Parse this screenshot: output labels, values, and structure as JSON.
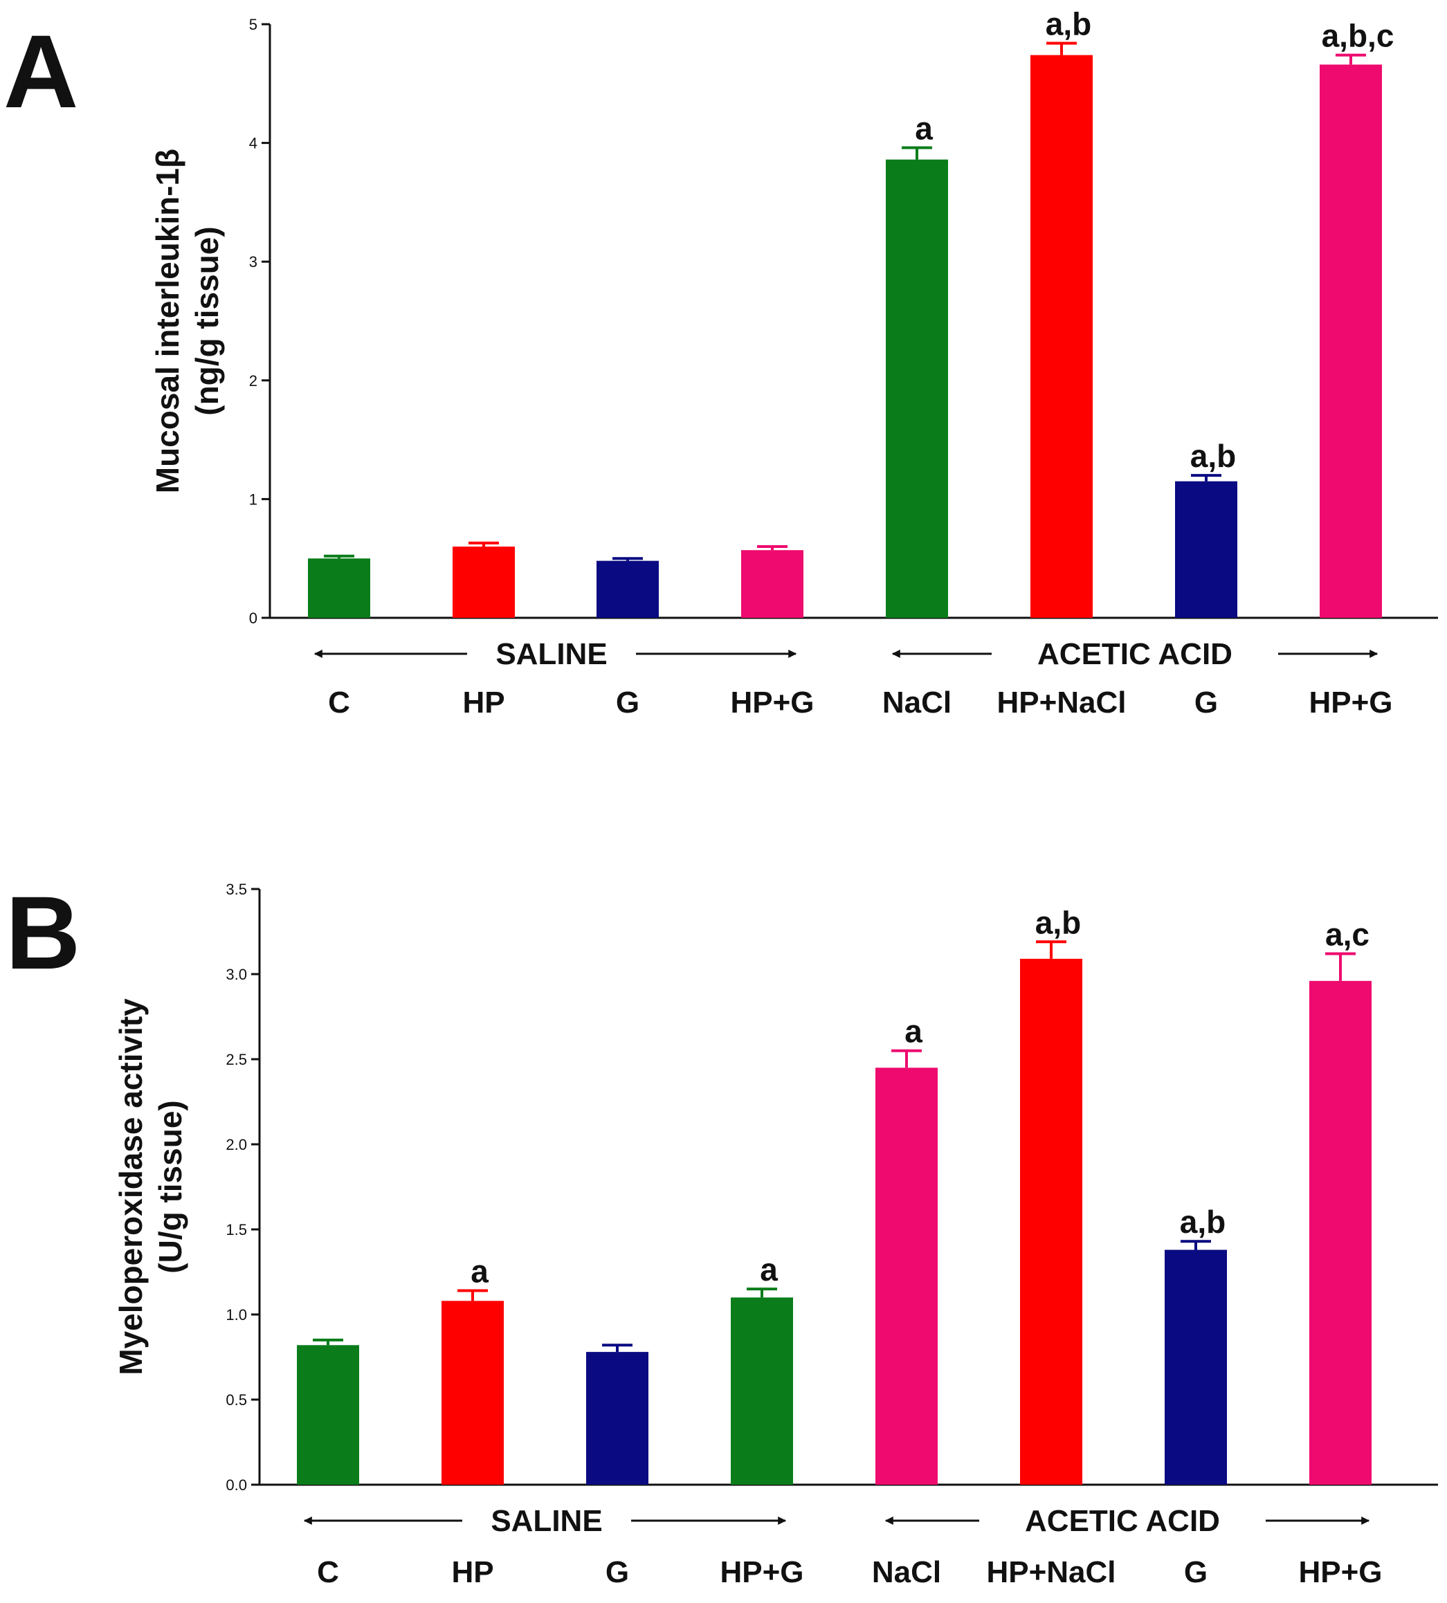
{
  "chart_data": [
    {
      "panel_label": "A",
      "type": "bar",
      "ylabel_line1": "Mucosal interleukin-1β",
      "ylabel_line2": "(ng/g tissue)",
      "ylim": [
        0,
        5
      ],
      "yticks": [
        "0",
        "1",
        "2",
        "3",
        "4",
        "5"
      ],
      "groups": [
        {
          "label": "SALINE",
          "categories": [
            "C",
            "HP",
            "G",
            "HP+G"
          ]
        },
        {
          "label": "ACETIC ACID",
          "categories": [
            "NaCl",
            "HP+NaCl",
            "G",
            "HP+G"
          ]
        }
      ],
      "categories": [
        "C",
        "HP",
        "G",
        "HP+G",
        "NaCl",
        "HP+NaCl",
        "G",
        "HP+G"
      ],
      "values": [
        0.5,
        0.6,
        0.48,
        0.57,
        3.86,
        4.74,
        1.15,
        4.66
      ],
      "errors": [
        0.02,
        0.03,
        0.02,
        0.03,
        0.1,
        0.1,
        0.05,
        0.08
      ],
      "significance": [
        "",
        "",
        "",
        "",
        "a",
        "a,b",
        "a,b",
        "a,b,c"
      ],
      "colors": [
        "#0a7d1a",
        "#ff0000",
        "#0a0a82",
        "#ee0a6e",
        "#0a7d1a",
        "#ff0000",
        "#0a0a82",
        "#ee0a6e"
      ]
    },
    {
      "panel_label": "B",
      "type": "bar",
      "ylabel_line1": "Myeloperoxidase activity",
      "ylabel_line2": "(U/g tissue)",
      "ylim": [
        0,
        3.5
      ],
      "yticks": [
        "0.0",
        "0.5",
        "1.0",
        "1.5",
        "2.0",
        "2.5",
        "3.0",
        "3.5"
      ],
      "groups": [
        {
          "label": "SALINE",
          "categories": [
            "C",
            "HP",
            "G",
            "HP+G"
          ]
        },
        {
          "label": "ACETIC ACID",
          "categories": [
            "NaCl",
            "HP+NaCl",
            "G",
            "HP+G"
          ]
        }
      ],
      "categories": [
        "C",
        "HP",
        "G",
        "HP+G",
        "NaCl",
        "HP+NaCl",
        "G",
        "HP+G"
      ],
      "values": [
        0.82,
        1.08,
        0.78,
        1.1,
        2.45,
        3.09,
        1.38,
        2.96
      ],
      "errors": [
        0.03,
        0.06,
        0.04,
        0.05,
        0.1,
        0.1,
        0.05,
        0.16
      ],
      "significance": [
        "",
        "a",
        "",
        "a",
        "a",
        "a,b",
        "a,b",
        "a,c"
      ],
      "colors": [
        "#0a7d1a",
        "#ff0000",
        "#0a0a82",
        "#0a7d1a",
        "#ee0a6e",
        "#ff0000",
        "#0a0a82",
        "#ee0a6e"
      ]
    }
  ]
}
